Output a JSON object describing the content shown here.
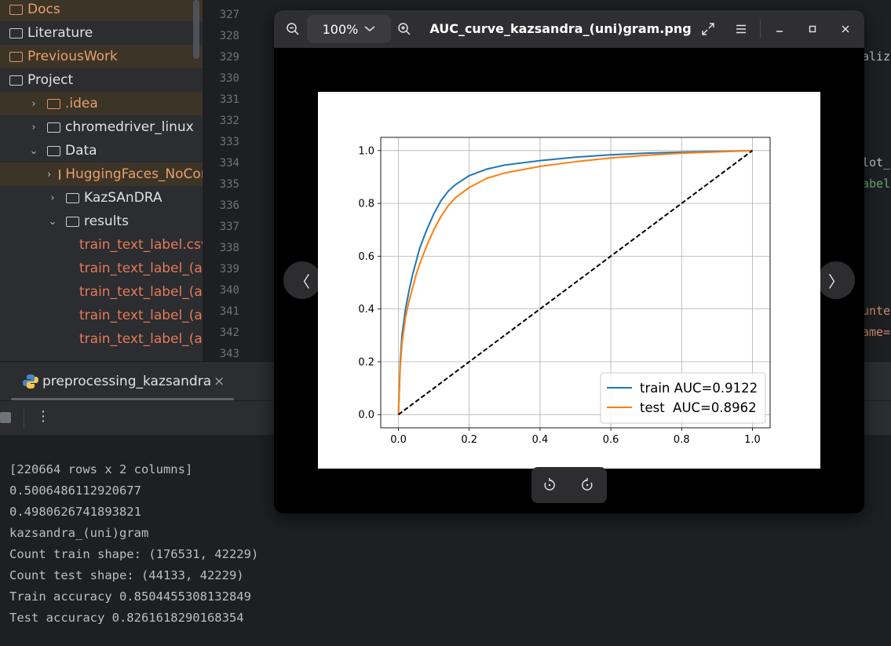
{
  "project_tree": {
    "items": [
      {
        "label": "Docs",
        "depth": 0,
        "chevron": "",
        "style": "orange hl",
        "icon": "folder"
      },
      {
        "label": "Literature",
        "depth": 0,
        "chevron": "",
        "style": "",
        "icon": "folder"
      },
      {
        "label": "PreviousWork",
        "depth": 0,
        "chevron": "",
        "style": "orange hl",
        "icon": "folder"
      },
      {
        "label": "Project",
        "depth": 0,
        "chevron": "",
        "style": "",
        "icon": "folder"
      },
      {
        "label": ".idea",
        "depth": 1,
        "chevron": "›",
        "style": "orange hl",
        "icon": "folder"
      },
      {
        "label": "chromedriver_linux",
        "depth": 1,
        "chevron": "›",
        "style": "",
        "icon": "folder"
      },
      {
        "label": "Data",
        "depth": 1,
        "chevron": "⌄",
        "style": "",
        "icon": "folder"
      },
      {
        "label": "HuggingFaces_NoCom",
        "depth": 2,
        "chevron": "›",
        "style": "orange hl",
        "icon": "folder"
      },
      {
        "label": "KazSAnDRA",
        "depth": 2,
        "chevron": "›",
        "style": "",
        "icon": "folder"
      },
      {
        "label": "results",
        "depth": 2,
        "chevron": "⌄",
        "style": "",
        "icon": "folder"
      },
      {
        "label": "train_text_label.csv",
        "depth": 3,
        "chevron": "",
        "style": "file",
        "icon": "file"
      },
      {
        "label": "train_text_label_(al",
        "depth": 3,
        "chevron": "",
        "style": "file",
        "icon": "file"
      },
      {
        "label": "train_text_label_(al",
        "depth": 3,
        "chevron": "",
        "style": "file",
        "icon": "file"
      },
      {
        "label": "train_text_label_(al",
        "depth": 3,
        "chevron": "",
        "style": "file",
        "icon": "file"
      },
      {
        "label": "train_text_label_(al",
        "depth": 3,
        "chevron": "",
        "style": "file",
        "icon": "file"
      }
    ]
  },
  "editor": {
    "line_numbers": [
      "327",
      "328",
      "329",
      "330",
      "331",
      "332",
      "333",
      "334",
      "335",
      "336",
      "337",
      "338",
      "339",
      "340",
      "341",
      "342",
      "343"
    ],
    "fragments": [
      {
        "text": "aliz",
        "color": "#bcbec4",
        "line": 2
      },
      {
        "text": "lot_",
        "color": "#bcbec4",
        "line": 7
      },
      {
        "text": "abel",
        "color": "#6aab73",
        "line": 8
      },
      {
        "text": "unte",
        "color": "#cf8e6d",
        "line": 14
      },
      {
        "text": "ame=",
        "color": "#cf8e6d",
        "line": 15
      }
    ]
  },
  "run": {
    "tab_label": "preprocessing_kazsandra",
    "console_lines": [
      "[220664 rows x 2 columns]",
      "0.5006486112920677",
      "0.4980626741893821",
      "kazsandra_(uni)gram",
      "Count train shape: (176531, 42229)",
      "Count test shape: (44133, 42229)",
      "Train accuracy 0.8504455308132849",
      "Test accuracy 0.8261618290168354"
    ]
  },
  "viewer": {
    "zoom": "100%",
    "title": "AUC_curve_kazsandra_(uni)gram.png"
  },
  "chart_data": {
    "type": "line",
    "title": "",
    "xlabel": "",
    "ylabel": "",
    "xlim": [
      -0.05,
      1.05
    ],
    "ylim": [
      -0.05,
      1.05
    ],
    "xticks": [
      "0.0",
      "0.2",
      "0.4",
      "0.6",
      "0.8",
      "1.0"
    ],
    "yticks": [
      "0.0",
      "0.2",
      "0.4",
      "0.6",
      "0.8",
      "1.0"
    ],
    "grid": true,
    "legend_position": "lower-right",
    "series": [
      {
        "name": "train AUC=0.9122",
        "color": "#1f77b4",
        "dash": "solid",
        "x": [
          0,
          0.005,
          0.01,
          0.02,
          0.03,
          0.04,
          0.05,
          0.06,
          0.08,
          0.1,
          0.12,
          0.14,
          0.16,
          0.2,
          0.25,
          0.3,
          0.4,
          0.5,
          0.6,
          0.7,
          0.8,
          0.9,
          1.0
        ],
        "y": [
          0,
          0.2,
          0.3,
          0.4,
          0.47,
          0.53,
          0.58,
          0.63,
          0.7,
          0.76,
          0.81,
          0.845,
          0.87,
          0.905,
          0.93,
          0.945,
          0.962,
          0.975,
          0.984,
          0.99,
          0.994,
          0.997,
          1.0
        ]
      },
      {
        "name": "test  AUC=0.8962",
        "color": "#ff7f0e",
        "dash": "solid",
        "x": [
          0,
          0.005,
          0.01,
          0.02,
          0.03,
          0.04,
          0.05,
          0.06,
          0.08,
          0.1,
          0.12,
          0.14,
          0.16,
          0.2,
          0.25,
          0.3,
          0.4,
          0.5,
          0.6,
          0.7,
          0.8,
          0.9,
          1.0
        ],
        "y": [
          0,
          0.18,
          0.27,
          0.37,
          0.43,
          0.48,
          0.53,
          0.57,
          0.64,
          0.7,
          0.75,
          0.79,
          0.82,
          0.86,
          0.895,
          0.915,
          0.94,
          0.958,
          0.972,
          0.982,
          0.99,
          0.995,
          1.0
        ]
      },
      {
        "name": "",
        "color": "#000000",
        "dash": "dashed",
        "x": [
          0,
          1
        ],
        "y": [
          0,
          1
        ]
      }
    ]
  }
}
